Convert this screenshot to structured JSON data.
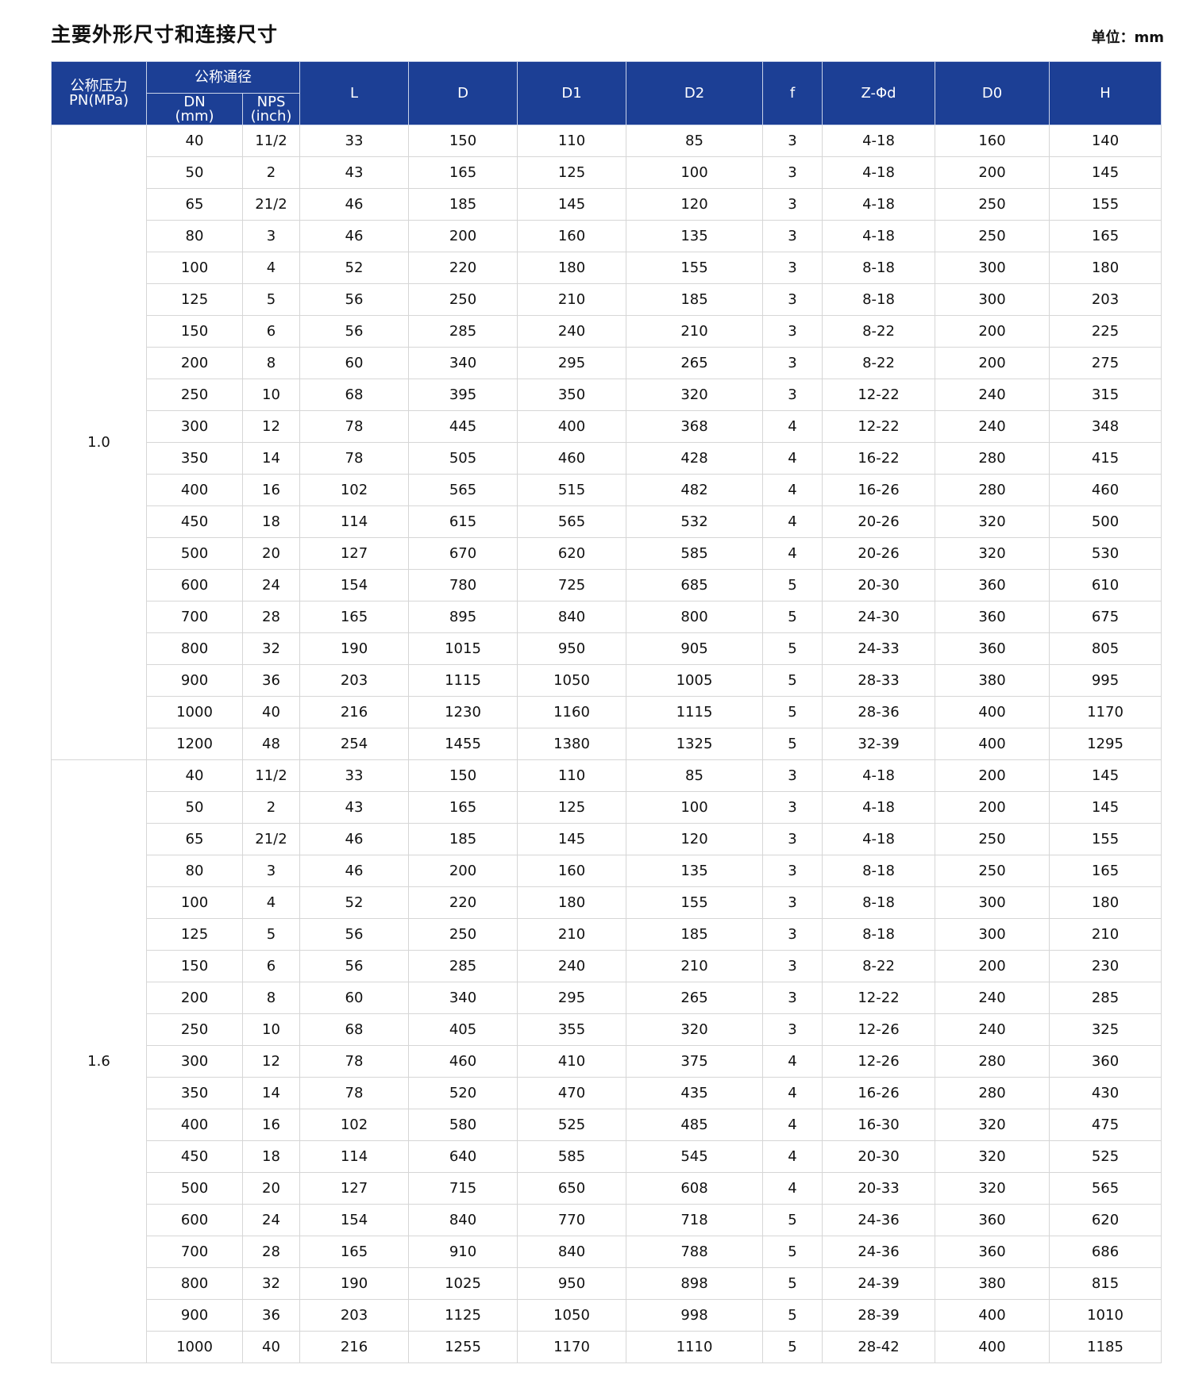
{
  "title": "主要外形尺寸和连接尺寸",
  "unit": "单位：mm",
  "colors": {
    "header_bg": "#1c3f95",
    "header_text": "#ffffff",
    "border": "#d6d6d6"
  },
  "header": {
    "pn": "公称压力",
    "pn_unit": "PN(MPa)",
    "nominal": "公称通径",
    "dn": "DN",
    "dn_unit": "(mm)",
    "nps": "NPS",
    "nps_unit": "(inch)",
    "cols": [
      "L",
      "D",
      "D1",
      "D2",
      "f",
      "Z-Φd",
      "D0",
      "H"
    ]
  },
  "groups": [
    {
      "pn": "1.0",
      "rows": [
        [
          "40",
          "11/2",
          "33",
          "150",
          "110",
          "85",
          "3",
          "4-18",
          "160",
          "140"
        ],
        [
          "50",
          "2",
          "43",
          "165",
          "125",
          "100",
          "3",
          "4-18",
          "200",
          "145"
        ],
        [
          "65",
          "21/2",
          "46",
          "185",
          "145",
          "120",
          "3",
          "4-18",
          "250",
          "155"
        ],
        [
          "80",
          "3",
          "46",
          "200",
          "160",
          "135",
          "3",
          "4-18",
          "250",
          "165"
        ],
        [
          "100",
          "4",
          "52",
          "220",
          "180",
          "155",
          "3",
          "8-18",
          "300",
          "180"
        ],
        [
          "125",
          "5",
          "56",
          "250",
          "210",
          "185",
          "3",
          "8-18",
          "300",
          "203"
        ],
        [
          "150",
          "6",
          "56",
          "285",
          "240",
          "210",
          "3",
          "8-22",
          "200",
          "225"
        ],
        [
          "200",
          "8",
          "60",
          "340",
          "295",
          "265",
          "3",
          "8-22",
          "200",
          "275"
        ],
        [
          "250",
          "10",
          "68",
          "395",
          "350",
          "320",
          "3",
          "12-22",
          "240",
          "315"
        ],
        [
          "300",
          "12",
          "78",
          "445",
          "400",
          "368",
          "4",
          "12-22",
          "240",
          "348"
        ],
        [
          "350",
          "14",
          "78",
          "505",
          "460",
          "428",
          "4",
          "16-22",
          "280",
          "415"
        ],
        [
          "400",
          "16",
          "102",
          "565",
          "515",
          "482",
          "4",
          "16-26",
          "280",
          "460"
        ],
        [
          "450",
          "18",
          "114",
          "615",
          "565",
          "532",
          "4",
          "20-26",
          "320",
          "500"
        ],
        [
          "500",
          "20",
          "127",
          "670",
          "620",
          "585",
          "4",
          "20-26",
          "320",
          "530"
        ],
        [
          "600",
          "24",
          "154",
          "780",
          "725",
          "685",
          "5",
          "20-30",
          "360",
          "610"
        ],
        [
          "700",
          "28",
          "165",
          "895",
          "840",
          "800",
          "5",
          "24-30",
          "360",
          "675"
        ],
        [
          "800",
          "32",
          "190",
          "1015",
          "950",
          "905",
          "5",
          "24-33",
          "360",
          "805"
        ],
        [
          "900",
          "36",
          "203",
          "1115",
          "1050",
          "1005",
          "5",
          "28-33",
          "380",
          "995"
        ],
        [
          "1000",
          "40",
          "216",
          "1230",
          "1160",
          "1115",
          "5",
          "28-36",
          "400",
          "1170"
        ],
        [
          "1200",
          "48",
          "254",
          "1455",
          "1380",
          "1325",
          "5",
          "32-39",
          "400",
          "1295"
        ]
      ]
    },
    {
      "pn": "1.6",
      "rows": [
        [
          "40",
          "11/2",
          "33",
          "150",
          "110",
          "85",
          "3",
          "4-18",
          "200",
          "145"
        ],
        [
          "50",
          "2",
          "43",
          "165",
          "125",
          "100",
          "3",
          "4-18",
          "200",
          "145"
        ],
        [
          "65",
          "21/2",
          "46",
          "185",
          "145",
          "120",
          "3",
          "4-18",
          "250",
          "155"
        ],
        [
          "80",
          "3",
          "46",
          "200",
          "160",
          "135",
          "3",
          "8-18",
          "250",
          "165"
        ],
        [
          "100",
          "4",
          "52",
          "220",
          "180",
          "155",
          "3",
          "8-18",
          "300",
          "180"
        ],
        [
          "125",
          "5",
          "56",
          "250",
          "210",
          "185",
          "3",
          "8-18",
          "300",
          "210"
        ],
        [
          "150",
          "6",
          "56",
          "285",
          "240",
          "210",
          "3",
          "8-22",
          "200",
          "230"
        ],
        [
          "200",
          "8",
          "60",
          "340",
          "295",
          "265",
          "3",
          "12-22",
          "240",
          "285"
        ],
        [
          "250",
          "10",
          "68",
          "405",
          "355",
          "320",
          "3",
          "12-26",
          "240",
          "325"
        ],
        [
          "300",
          "12",
          "78",
          "460",
          "410",
          "375",
          "4",
          "12-26",
          "280",
          "360"
        ],
        [
          "350",
          "14",
          "78",
          "520",
          "470",
          "435",
          "4",
          "16-26",
          "280",
          "430"
        ],
        [
          "400",
          "16",
          "102",
          "580",
          "525",
          "485",
          "4",
          "16-30",
          "320",
          "475"
        ],
        [
          "450",
          "18",
          "114",
          "640",
          "585",
          "545",
          "4",
          "20-30",
          "320",
          "525"
        ],
        [
          "500",
          "20",
          "127",
          "715",
          "650",
          "608",
          "4",
          "20-33",
          "320",
          "565"
        ],
        [
          "600",
          "24",
          "154",
          "840",
          "770",
          "718",
          "5",
          "24-36",
          "360",
          "620"
        ],
        [
          "700",
          "28",
          "165",
          "910",
          "840",
          "788",
          "5",
          "24-36",
          "360",
          "686"
        ],
        [
          "800",
          "32",
          "190",
          "1025",
          "950",
          "898",
          "5",
          "24-39",
          "380",
          "815"
        ],
        [
          "900",
          "36",
          "203",
          "1125",
          "1050",
          "998",
          "5",
          "28-39",
          "400",
          "1010"
        ],
        [
          "1000",
          "40",
          "216",
          "1255",
          "1170",
          "1110",
          "5",
          "28-42",
          "400",
          "1185"
        ]
      ]
    }
  ]
}
